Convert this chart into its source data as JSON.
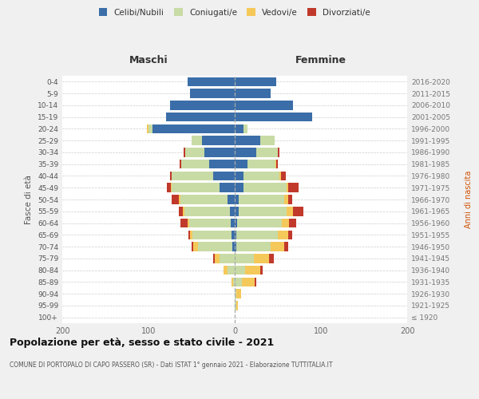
{
  "age_groups": [
    "100+",
    "95-99",
    "90-94",
    "85-89",
    "80-84",
    "75-79",
    "70-74",
    "65-69",
    "60-64",
    "55-59",
    "50-54",
    "45-49",
    "40-44",
    "35-39",
    "30-34",
    "25-29",
    "20-24",
    "15-19",
    "10-14",
    "5-9",
    "0-4"
  ],
  "birth_years": [
    "≤ 1920",
    "1921-1925",
    "1926-1930",
    "1931-1935",
    "1936-1940",
    "1941-1945",
    "1946-1950",
    "1951-1955",
    "1956-1960",
    "1961-1965",
    "1966-1970",
    "1971-1975",
    "1976-1980",
    "1981-1985",
    "1986-1990",
    "1991-1995",
    "1996-2000",
    "2001-2005",
    "2006-2010",
    "2011-2015",
    "2016-2020"
  ],
  "maschi": {
    "celibi": [
      0,
      0,
      0,
      0,
      0,
      0,
      3,
      4,
      5,
      6,
      8,
      18,
      25,
      30,
      35,
      38,
      95,
      80,
      75,
      52,
      55
    ],
    "coniugati": [
      0,
      0,
      0,
      2,
      8,
      18,
      40,
      45,
      48,
      52,
      55,
      55,
      48,
      32,
      22,
      12,
      5,
      0,
      0,
      0,
      0
    ],
    "vedovi": [
      0,
      0,
      0,
      2,
      5,
      5,
      5,
      3,
      2,
      2,
      2,
      1,
      0,
      0,
      0,
      0,
      2,
      0,
      0,
      0,
      0
    ],
    "divorziati": [
      0,
      0,
      0,
      0,
      0,
      2,
      2,
      2,
      8,
      5,
      8,
      5,
      2,
      2,
      2,
      0,
      0,
      0,
      0,
      0,
      0
    ]
  },
  "femmine": {
    "nubili": [
      0,
      0,
      0,
      0,
      0,
      0,
      2,
      2,
      3,
      5,
      5,
      10,
      10,
      15,
      25,
      30,
      10,
      90,
      68,
      42,
      48
    ],
    "coniugate": [
      0,
      2,
      2,
      8,
      12,
      22,
      40,
      48,
      52,
      55,
      52,
      50,
      42,
      32,
      25,
      16,
      5,
      0,
      0,
      0,
      0
    ],
    "vedove": [
      0,
      2,
      5,
      15,
      18,
      18,
      15,
      12,
      8,
      8,
      5,
      2,
      2,
      1,
      0,
      0,
      0,
      0,
      0,
      0,
      0
    ],
    "divorziate": [
      0,
      0,
      0,
      2,
      2,
      5,
      5,
      5,
      8,
      12,
      5,
      12,
      5,
      2,
      2,
      0,
      0,
      0,
      0,
      0,
      0
    ]
  },
  "colors": {
    "celibi": "#3b6ea8",
    "coniugati": "#c8dba5",
    "vedovi": "#f5c85a",
    "divorziati": "#c0392b"
  },
  "xlim": 200,
  "title": "Popolazione per età, sesso e stato civile - 2021",
  "subtitle": "COMUNE DI PORTOPALO DI CAPO PASSERO (SR) - Dati ISTAT 1° gennaio 2021 - Elaborazione TUTTITALIA.IT",
  "ylabel_left": "Fasce di età",
  "ylabel_right": "Anni di nascita",
  "label_maschi": "Maschi",
  "label_femmine": "Femmine",
  "legend_labels": [
    "Celibi/Nubili",
    "Coniugati/e",
    "Vedovi/e",
    "Divorziati/e"
  ],
  "bg_color": "#f0f0f0",
  "plot_bg": "#ffffff"
}
